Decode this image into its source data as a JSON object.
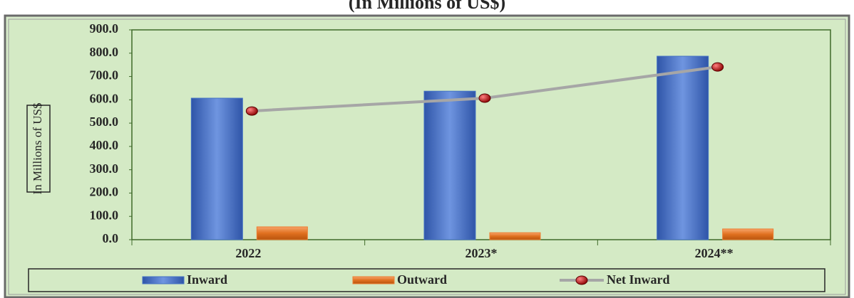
{
  "chart_data": {
    "type": "bar",
    "title": "(In Millions of US$)",
    "y_label": "In Millions of US$",
    "categories": [
      "2022",
      "2023*",
      "2024**"
    ],
    "series": [
      {
        "name": "Inward",
        "color": "#4472c4",
        "type": "bar",
        "values": [
          607,
          637,
          787
        ]
      },
      {
        "name": "Outward",
        "color": "#ed7d31",
        "type": "bar",
        "values": [
          55,
          30,
          46
        ]
      },
      {
        "name": "Net Inward",
        "color": "#a6a6a6",
        "marker_color": "#c00000",
        "type": "line",
        "values": [
          552,
          607,
          741
        ]
      }
    ],
    "ylim": [
      0,
      900
    ],
    "yticks": [
      {
        "value": 0,
        "label": "0.0"
      },
      {
        "value": 100,
        "label": "100.0"
      },
      {
        "value": 200,
        "label": "200.0"
      },
      {
        "value": 300,
        "label": "300.0"
      },
      {
        "value": 400,
        "label": "400.0"
      },
      {
        "value": 500,
        "label": "500.0"
      },
      {
        "value": 600,
        "label": "600.0"
      },
      {
        "value": 700,
        "label": "700.0"
      },
      {
        "value": 800,
        "label": "800.0"
      },
      {
        "value": 900,
        "label": "900.0"
      }
    ],
    "legend": "bottom"
  }
}
